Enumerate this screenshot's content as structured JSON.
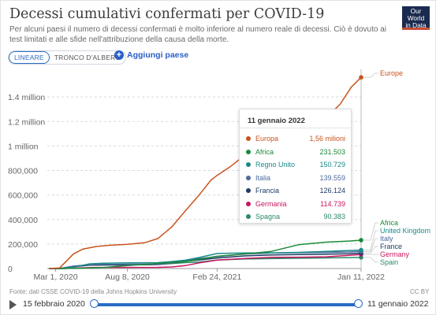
{
  "header": {
    "title": "Decessi cumulativi confermati per COVID-19",
    "subtitle": "Per alcuni paesi il numero di decessi confermati è molto inferiore al numero reale di decessi. Ciò è dovuto ai test limitati e alle sfide nell'attribuzione della causa della morte.",
    "logo_line1": "Our World",
    "logo_line2": "in Data"
  },
  "controls": {
    "scale_linear": "LINEARE",
    "scale_tree": "TRONCO D'ALBERO",
    "add_country": "Aggiungi paese"
  },
  "tooltip": {
    "date": "11 gennaio 2022",
    "rows": [
      {
        "name": "Europa",
        "value": "1,56 milioni",
        "color": "#c8541d"
      },
      {
        "name": "Africa",
        "value": "231.503",
        "color": "#1a8a38"
      },
      {
        "name": "Regno Unito",
        "value": "150.729",
        "color": "#1a8a8a"
      },
      {
        "name": "Italia",
        "value": "139.559",
        "color": "#4c6a9c"
      },
      {
        "name": "Francia",
        "value": "126.124",
        "color": "#1f3a66"
      },
      {
        "name": "Germania",
        "value": "114.739",
        "color": "#c8165f"
      },
      {
        "name": "Spagna",
        "value": "90.383",
        "color": "#2a8a6a"
      }
    ]
  },
  "footer": {
    "source": "Fonte: dati CSSE COVID-19 della Johns Hopkins University",
    "license": "CC BY"
  },
  "timeline": {
    "start_label": "15 febbraio 2020",
    "end_label": "11 gennaio 2022",
    "position": 1.0
  },
  "chart_data": {
    "type": "line",
    "ylim": [
      0,
      1600000
    ],
    "y_ticks": [
      {
        "value": 0,
        "label": "0"
      },
      {
        "value": 200000,
        "label": "200,000"
      },
      {
        "value": 400000,
        "label": "400,000"
      },
      {
        "value": 600000,
        "label": "600,000"
      },
      {
        "value": 800000,
        "label": "800,000"
      },
      {
        "value": 1000000,
        "label": "1 million"
      },
      {
        "value": 1200000,
        "label": "1.2 million"
      },
      {
        "value": 1400000,
        "label": "1.4 million"
      }
    ],
    "x_ticks": [
      {
        "date": "2020-03-01",
        "label": "Mar 1, 2020"
      },
      {
        "date": "2020-08-08",
        "label": "Aug 8, 2020"
      },
      {
        "date": "2021-02-24",
        "label": "Feb 24, 2021"
      },
      {
        "date": "2022-01-11",
        "label": "Jan 11, 2022"
      }
    ],
    "x_range": [
      "2020-02-15",
      "2022-01-11"
    ],
    "series": [
      {
        "name": "Europe",
        "color": "#c8541d",
        "points": [
          [
            "2020-02-15",
            0
          ],
          [
            "2020-03-10",
            5000
          ],
          [
            "2020-03-25",
            60000
          ],
          [
            "2020-04-10",
            120000
          ],
          [
            "2020-04-30",
            158000
          ],
          [
            "2020-05-31",
            180000
          ],
          [
            "2020-07-01",
            190000
          ],
          [
            "2020-08-08",
            198000
          ],
          [
            "2020-09-15",
            210000
          ],
          [
            "2020-10-15",
            245000
          ],
          [
            "2020-11-15",
            340000
          ],
          [
            "2020-12-15",
            470000
          ],
          [
            "2021-01-15",
            600000
          ],
          [
            "2021-02-10",
            720000
          ],
          [
            "2021-02-24",
            760000
          ],
          [
            "2021-03-25",
            830000
          ],
          [
            "2021-04-25",
            920000
          ],
          [
            "2021-05-25",
            1000000
          ],
          [
            "2021-06-25",
            1050000
          ],
          [
            "2021-07-25",
            1080000
          ],
          [
            "2021-08-25",
            1120000
          ],
          [
            "2021-09-25",
            1170000
          ],
          [
            "2021-10-25",
            1230000
          ],
          [
            "2021-11-25",
            1340000
          ],
          [
            "2021-12-20",
            1480000
          ],
          [
            "2022-01-11",
            1560000
          ]
        ]
      },
      {
        "name": "Africa",
        "color": "#1a8a38",
        "points": [
          [
            "2020-02-15",
            0
          ],
          [
            "2020-04-15",
            1000
          ],
          [
            "2020-06-15",
            8000
          ],
          [
            "2020-08-08",
            24000
          ],
          [
            "2020-10-15",
            42000
          ],
          [
            "2020-12-15",
            57000
          ],
          [
            "2021-02-24",
            100000
          ],
          [
            "2021-04-25",
            118000
          ],
          [
            "2021-06-25",
            140000
          ],
          [
            "2021-08-25",
            195000
          ],
          [
            "2021-10-25",
            215000
          ],
          [
            "2021-12-15",
            224000
          ],
          [
            "2022-01-11",
            231503
          ]
        ]
      },
      {
        "name": "United Kingdom",
        "color": "#1a8a8a",
        "points": [
          [
            "2020-02-15",
            0
          ],
          [
            "2020-03-15",
            100
          ],
          [
            "2020-04-15",
            15000
          ],
          [
            "2020-05-15",
            38000
          ],
          [
            "2020-06-15",
            43000
          ],
          [
            "2020-08-08",
            46000
          ],
          [
            "2020-10-15",
            48000
          ],
          [
            "2020-11-15",
            57000
          ],
          [
            "2020-12-15",
            68000
          ],
          [
            "2021-01-15",
            90000
          ],
          [
            "2021-02-24",
            123000
          ],
          [
            "2021-04-25",
            127000
          ],
          [
            "2021-06-25",
            128000
          ],
          [
            "2021-08-25",
            132000
          ],
          [
            "2021-10-25",
            140000
          ],
          [
            "2021-12-15",
            147000
          ],
          [
            "2022-01-11",
            150729
          ]
        ]
      },
      {
        "name": "Italy",
        "color": "#4c6a9c",
        "points": [
          [
            "2020-02-15",
            0
          ],
          [
            "2020-03-10",
            800
          ],
          [
            "2020-04-10",
            20000
          ],
          [
            "2020-05-15",
            31000
          ],
          [
            "2020-06-15",
            34000
          ],
          [
            "2020-08-08",
            35200
          ],
          [
            "2020-10-15",
            36500
          ],
          [
            "2020-11-15",
            45000
          ],
          [
            "2020-12-15",
            66000
          ],
          [
            "2021-01-15",
            81000
          ],
          [
            "2021-02-24",
            97000
          ],
          [
            "2021-04-25",
            118000
          ],
          [
            "2021-06-25",
            127000
          ],
          [
            "2021-08-25",
            129000
          ],
          [
            "2021-10-25",
            131800
          ],
          [
            "2021-12-15",
            135000
          ],
          [
            "2022-01-11",
            139559
          ]
        ]
      },
      {
        "name": "France",
        "color": "#1f3a66",
        "points": [
          [
            "2020-02-15",
            0
          ],
          [
            "2020-03-15",
            100
          ],
          [
            "2020-04-15",
            17000
          ],
          [
            "2020-05-15",
            27000
          ],
          [
            "2020-06-15",
            29500
          ],
          [
            "2020-08-08",
            30300
          ],
          [
            "2020-10-15",
            33000
          ],
          [
            "2020-11-15",
            45000
          ],
          [
            "2020-12-15",
            59000
          ],
          [
            "2021-01-15",
            70000
          ],
          [
            "2021-02-24",
            86000
          ],
          [
            "2021-04-25",
            103000
          ],
          [
            "2021-06-25",
            111000
          ],
          [
            "2021-08-25",
            114000
          ],
          [
            "2021-10-25",
            117000
          ],
          [
            "2021-12-15",
            121000
          ],
          [
            "2022-01-11",
            126124
          ]
        ]
      },
      {
        "name": "Germany",
        "color": "#c8165f",
        "points": [
          [
            "2020-02-15",
            0
          ],
          [
            "2020-03-20",
            100
          ],
          [
            "2020-04-20",
            5000
          ],
          [
            "2020-05-20",
            8400
          ],
          [
            "2020-08-08",
            9200
          ],
          [
            "2020-10-15",
            9800
          ],
          [
            "2020-11-15",
            13000
          ],
          [
            "2020-12-15",
            24000
          ],
          [
            "2021-01-15",
            46000
          ],
          [
            "2021-02-24",
            69000
          ],
          [
            "2021-04-25",
            82000
          ],
          [
            "2021-06-25",
            91000
          ],
          [
            "2021-08-25",
            92500
          ],
          [
            "2021-10-25",
            95500
          ],
          [
            "2021-12-15",
            107000
          ],
          [
            "2022-01-11",
            114739
          ]
        ]
      },
      {
        "name": "Spain",
        "color": "#2a8a6a",
        "points": [
          [
            "2020-02-15",
            0
          ],
          [
            "2020-03-10",
            100
          ],
          [
            "2020-04-10",
            16000
          ],
          [
            "2020-05-15",
            27500
          ],
          [
            "2020-06-15",
            28300
          ],
          [
            "2020-08-08",
            28600
          ],
          [
            "2020-10-15",
            33500
          ],
          [
            "2020-11-15",
            41000
          ],
          [
            "2020-12-15",
            48000
          ],
          [
            "2021-01-15",
            53000
          ],
          [
            "2021-02-24",
            69000
          ],
          [
            "2021-04-25",
            78000
          ],
          [
            "2021-06-25",
            80800
          ],
          [
            "2021-08-25",
            84000
          ],
          [
            "2021-10-25",
            87000
          ],
          [
            "2021-12-15",
            89000
          ],
          [
            "2022-01-11",
            90383
          ]
        ]
      }
    ],
    "end_labels": [
      {
        "name": "Europe",
        "color": "#c8541d"
      },
      {
        "name": "Africa",
        "color": "#1a8a38"
      },
      {
        "name": "United Kingdom",
        "color": "#1a8a8a"
      },
      {
        "name": "Italy",
        "color": "#4c6a9c"
      },
      {
        "name": "France",
        "color": "#1f3a66"
      },
      {
        "name": "Germany",
        "color": "#c8165f"
      },
      {
        "name": "Spain",
        "color": "#2a8a6a"
      }
    ]
  }
}
